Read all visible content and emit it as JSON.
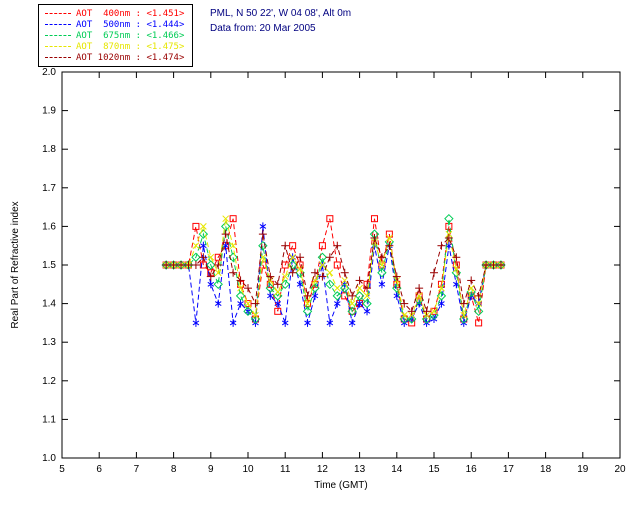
{
  "header": {
    "site": "PML, N 50 22', W 04 08', Alt 0m",
    "date_line": "Data from: 20 Mar 2005",
    "text_color": "#000080"
  },
  "colors": {
    "axis": "#000000",
    "background": "#ffffff"
  },
  "chart_data": {
    "type": "line",
    "title": "",
    "xlabel": "Time (GMT)",
    "ylabel": "Real Part of Refractive index",
    "xlim": [
      5,
      20
    ],
    "ylim": [
      1.0,
      2.0
    ],
    "xticks": [
      5,
      6,
      7,
      8,
      9,
      10,
      11,
      12,
      13,
      14,
      15,
      16,
      17,
      18,
      19,
      20
    ],
    "yticks": [
      1.0,
      1.1,
      1.2,
      1.3,
      1.4,
      1.5,
      1.6,
      1.7,
      1.8,
      1.9,
      2.0
    ],
    "grid": false,
    "legend_position": "top-left-outside",
    "x": [
      7.8,
      8.0,
      8.2,
      8.4,
      8.6,
      8.8,
      9.0,
      9.2,
      9.4,
      9.6,
      9.8,
      10.0,
      10.2,
      10.4,
      10.6,
      10.8,
      11.0,
      11.2,
      11.4,
      11.6,
      11.8,
      12.0,
      12.2,
      12.4,
      12.6,
      12.8,
      13.0,
      13.2,
      13.4,
      13.6,
      13.8,
      14.0,
      14.2,
      14.4,
      14.6,
      14.8,
      15.0,
      15.2,
      15.4,
      15.6,
      15.8,
      16.0,
      16.2,
      16.4,
      16.6,
      16.8
    ],
    "series": [
      {
        "name": "AOT 400nm",
        "mean": "<1.451>",
        "legend_label": "AOT  400nm : <1.451>",
        "color": "#ff0000",
        "marker": "square",
        "values": [
          1.5,
          1.5,
          1.5,
          1.5,
          1.6,
          1.5,
          1.48,
          1.52,
          1.55,
          1.62,
          1.45,
          1.4,
          1.36,
          1.5,
          1.45,
          1.38,
          1.5,
          1.55,
          1.5,
          1.4,
          1.45,
          1.55,
          1.62,
          1.5,
          1.42,
          1.38,
          1.4,
          1.45,
          1.62,
          1.5,
          1.58,
          1.45,
          1.36,
          1.35,
          1.42,
          1.36,
          1.38,
          1.45,
          1.6,
          1.5,
          1.36,
          1.42,
          1.35,
          1.5,
          1.5,
          1.5
        ]
      },
      {
        "name": "AOT 500nm",
        "mean": "<1.444>",
        "legend_label": "AOT  500nm : <1.444>",
        "color": "#0000ff",
        "marker": "asterisk",
        "values": [
          1.5,
          1.5,
          1.5,
          1.5,
          1.35,
          1.55,
          1.45,
          1.4,
          1.55,
          1.35,
          1.4,
          1.38,
          1.35,
          1.6,
          1.42,
          1.4,
          1.35,
          1.52,
          1.45,
          1.35,
          1.42,
          1.5,
          1.35,
          1.4,
          1.45,
          1.35,
          1.4,
          1.38,
          1.55,
          1.45,
          1.55,
          1.42,
          1.35,
          1.36,
          1.4,
          1.35,
          1.36,
          1.4,
          1.55,
          1.45,
          1.35,
          1.42,
          1.4,
          1.5,
          1.5,
          1.5
        ]
      },
      {
        "name": "AOT 675nm",
        "mean": "<1.466>",
        "legend_label": "AOT  675nm : <1.466>",
        "color": "#00cc55",
        "marker": "diamond",
        "values": [
          1.5,
          1.5,
          1.5,
          1.5,
          1.52,
          1.58,
          1.5,
          1.45,
          1.6,
          1.52,
          1.42,
          1.38,
          1.36,
          1.55,
          1.44,
          1.42,
          1.45,
          1.5,
          1.48,
          1.38,
          1.44,
          1.52,
          1.45,
          1.42,
          1.44,
          1.38,
          1.42,
          1.4,
          1.58,
          1.48,
          1.56,
          1.44,
          1.36,
          1.36,
          1.41,
          1.36,
          1.37,
          1.42,
          1.62,
          1.48,
          1.36,
          1.43,
          1.38,
          1.5,
          1.5,
          1.5
        ]
      },
      {
        "name": "AOT 870nm",
        "mean": "<1.475>",
        "legend_label": "AOT  870nm : <1.475>",
        "color": "#e6e600",
        "marker": "x",
        "values": [
          1.5,
          1.5,
          1.5,
          1.5,
          1.55,
          1.6,
          1.52,
          1.48,
          1.62,
          1.55,
          1.44,
          1.4,
          1.37,
          1.52,
          1.46,
          1.43,
          1.47,
          1.52,
          1.49,
          1.4,
          1.46,
          1.5,
          1.48,
          1.44,
          1.46,
          1.4,
          1.44,
          1.42,
          1.56,
          1.5,
          1.57,
          1.46,
          1.37,
          1.37,
          1.42,
          1.37,
          1.38,
          1.44,
          1.58,
          1.49,
          1.37,
          1.44,
          1.4,
          1.5,
          1.5,
          1.5
        ]
      },
      {
        "name": "AOT 1020nm",
        "mean": "<1.474>",
        "legend_label": "AOT 1020nm : <1.474>",
        "color": "#990000",
        "marker": "plus",
        "values": [
          1.5,
          1.5,
          1.5,
          1.5,
          1.5,
          1.52,
          1.47,
          1.5,
          1.58,
          1.48,
          1.46,
          1.44,
          1.4,
          1.58,
          1.47,
          1.45,
          1.55,
          1.48,
          1.52,
          1.42,
          1.48,
          1.47,
          1.52,
          1.55,
          1.48,
          1.42,
          1.46,
          1.44,
          1.57,
          1.52,
          1.55,
          1.47,
          1.4,
          1.38,
          1.44,
          1.38,
          1.48,
          1.55,
          1.57,
          1.52,
          1.4,
          1.46,
          1.42,
          1.5,
          1.5,
          1.5
        ]
      }
    ]
  }
}
